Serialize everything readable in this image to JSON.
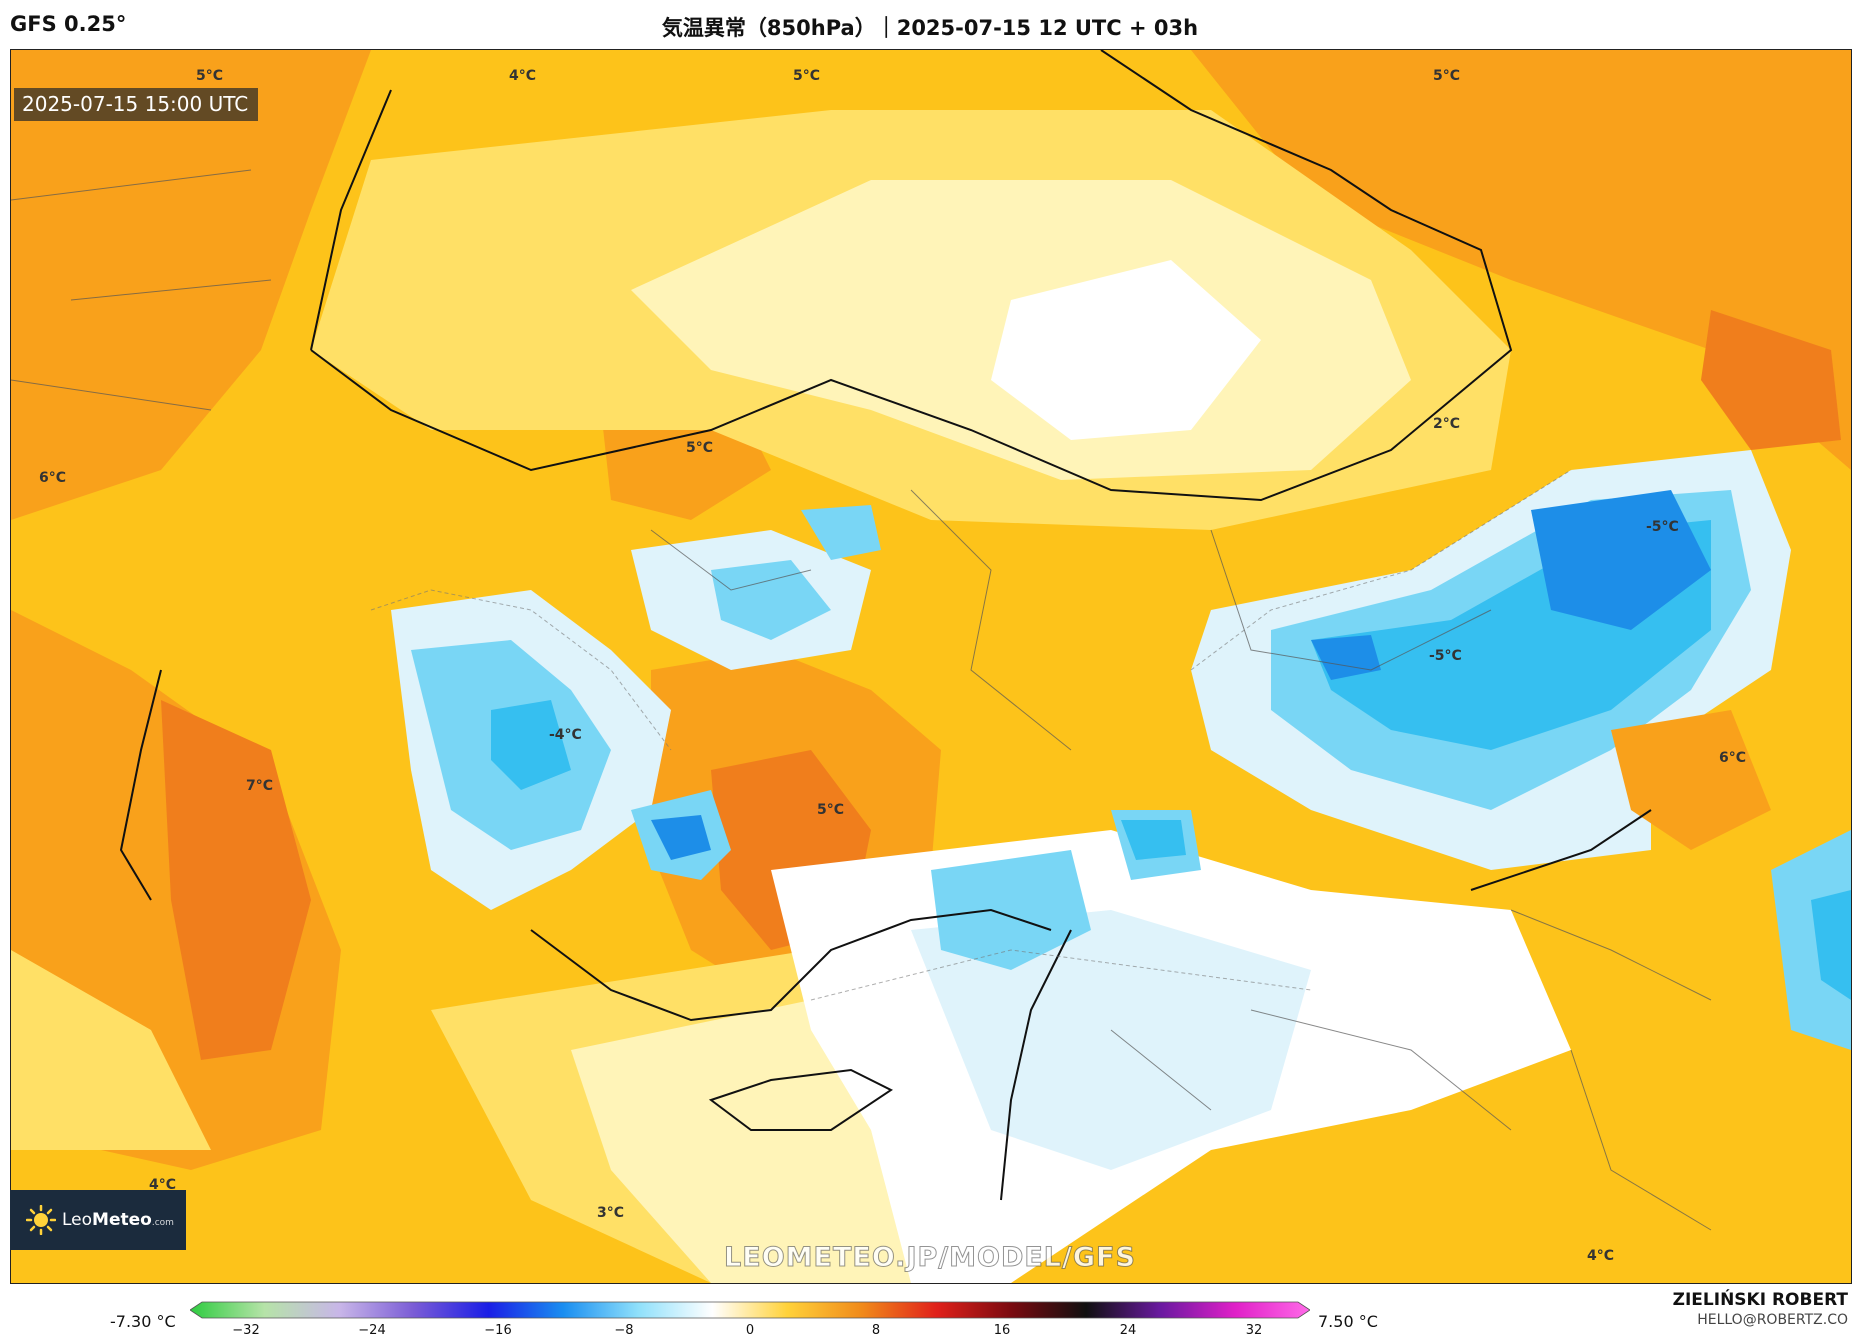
{
  "header": {
    "model": "GFS 0.25°",
    "title": "気温異常（850hPa）｜2025-07-15 12 UTC + 03h"
  },
  "map": {
    "timestamp": "2025-07-15 15:00 UTC",
    "contour_labels": [
      "4°C",
      "5°C",
      "5°C",
      "5°C",
      "6°C",
      "5°C",
      "2°C",
      "-5°C",
      "-5°C",
      "-4°C",
      "7°C",
      "5°C",
      "6°C",
      "4°C",
      "3°C",
      "4°C"
    ],
    "colors": {
      "strong_warm": "#f07e1c",
      "warm": "#f9a11b",
      "mild_warm": "#fdc31a",
      "slight_warm": "#ffe066",
      "pale_warm": "#fff4b8",
      "neutral": "#ffffff",
      "pale_cold": "#dff3fb",
      "cold": "#79d6f5",
      "colder": "#36bff0",
      "very_cold": "#1d8ee8"
    }
  },
  "logo": {
    "name_light": "Leo",
    "name_bold": "Meteo",
    "suffix": ".com"
  },
  "watermark": "LEOMETEO.JP/MODEL/GFS",
  "colorbar": {
    "min_label": "-7.30 °C",
    "max_label": "7.50 °C",
    "ticks": [
      "−32",
      "−24",
      "−16",
      "−8",
      "0",
      "8",
      "16",
      "24",
      "32"
    ],
    "stops": [
      "#2ecc40",
      "#b6e3a8",
      "#c8b6e8",
      "#7a5cd6",
      "#1a1ee6",
      "#1a8ef0",
      "#8fe0fb",
      "#ffffff",
      "#ffd23a",
      "#f08a1a",
      "#e0201a",
      "#7a0a10",
      "#101010",
      "#6a1aa0",
      "#e020c8",
      "#ff6ae8"
    ]
  },
  "author": {
    "name": "ZIELIŃSKI ROBERT",
    "email": "HELLO@ROBERTZ.CO"
  }
}
